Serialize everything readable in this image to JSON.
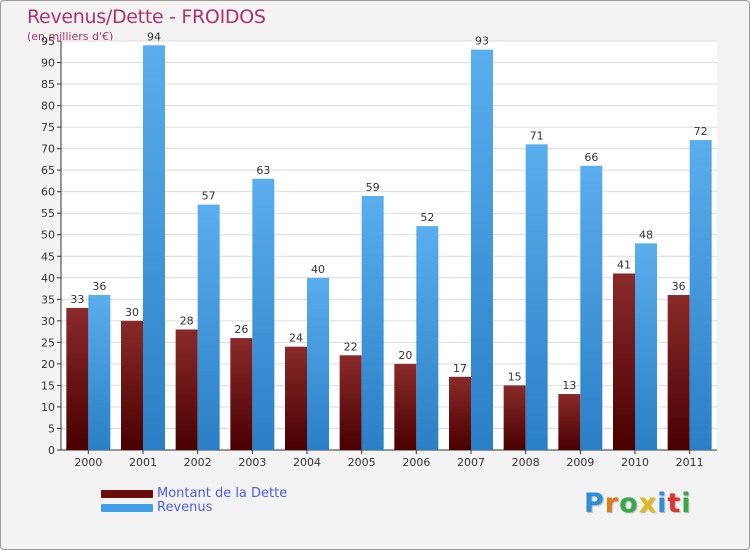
{
  "chart_data": {
    "type": "bar",
    "title": "Revenus/Dette - FROIDOS",
    "subtitle": "(en milliers d'€)",
    "categories": [
      "2000",
      "2001",
      "2002",
      "2003",
      "2004",
      "2005",
      "2006",
      "2007",
      "2008",
      "2009",
      "2010",
      "2011"
    ],
    "series": [
      {
        "name": "Montant de la Dette",
        "color": "#7a1818",
        "values": [
          33,
          30,
          28,
          26,
          24,
          22,
          20,
          17,
          15,
          13,
          41,
          36
        ]
      },
      {
        "name": "Revenus",
        "color": "#4aa3ea",
        "values": [
          36,
          94,
          57,
          63,
          40,
          59,
          52,
          93,
          71,
          66,
          48,
          72
        ]
      }
    ],
    "ylim": [
      0,
      95
    ],
    "yticks": [
      0,
      5,
      10,
      15,
      20,
      25,
      30,
      35,
      40,
      45,
      50,
      55,
      60,
      65,
      70,
      75,
      80,
      85,
      90,
      95
    ],
    "grid": true,
    "legend_position": "bottom-left"
  },
  "logo": {
    "letters": [
      "P",
      "r",
      "o",
      "x",
      "i",
      "t",
      "i"
    ],
    "colors": [
      "#2d8fd6",
      "#e07a1f",
      "#3aa84a",
      "#e0b81f",
      "#2d8fd6",
      "#d9362f",
      "#3aa84a"
    ]
  }
}
